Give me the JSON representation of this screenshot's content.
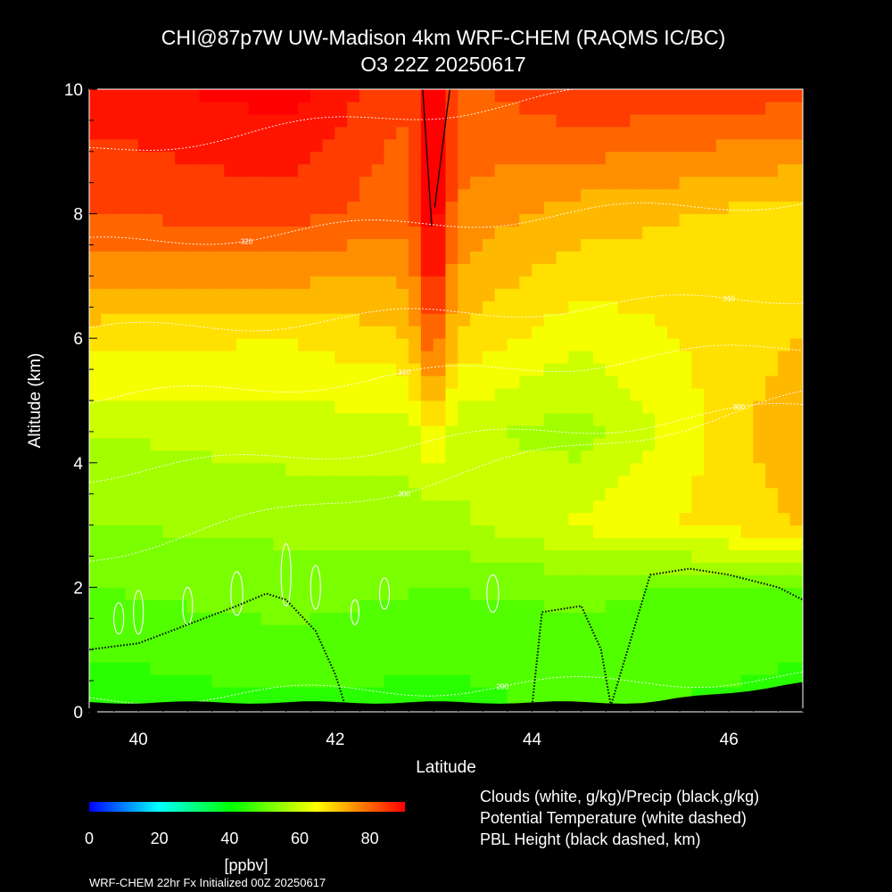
{
  "chart_data": {
    "type": "heatmap",
    "title": "CHI@87p7W UW-Madison 4km WRF-CHEM (RAQMS IC/BC)",
    "subtitle": "O3 22Z 20250617",
    "xlabel": "Latitude",
    "ylabel": "Altitude (km)",
    "xlim": [
      39.5,
      46.75
    ],
    "ylim": [
      0,
      10
    ],
    "x_ticks": [
      40,
      42,
      44,
      46
    ],
    "y_ticks": [
      0,
      2,
      4,
      6,
      8,
      10
    ],
    "x_tick_labels": [
      "40",
      "42",
      "44",
      "46"
    ],
    "y_tick_labels": [
      "0",
      "2",
      "4",
      "6",
      "8",
      "10"
    ],
    "colorbar": {
      "label": "[ppbv]",
      "range": [
        0,
        90
      ],
      "tick_values": [
        0,
        20,
        40,
        60,
        80
      ],
      "tick_labels": [
        "0",
        "20",
        "40",
        "60",
        "80"
      ],
      "colors": [
        "#0000ff",
        "#00ffff",
        "#00ff00",
        "#ffff00",
        "#ff0000"
      ]
    },
    "legend": [
      "Clouds (white, g/kg)/Precip (black,g/kg)",
      "Potential Temperature (white dashed)",
      "PBL Height (black dashed, km)"
    ],
    "theta_labels": [
      "290",
      "300",
      "300",
      "310",
      "310",
      "320",
      "320"
    ],
    "ozone_levels_ppbv": [
      {
        "alt_km": 0.3,
        "lat": [
          39.5,
          41.5,
          43.0,
          44.5,
          46.75
        ],
        "o3": [
          44,
          46,
          45,
          47,
          45
        ]
      },
      {
        "alt_km": 2.0,
        "lat": [
          39.5,
          41.5,
          43.0,
          44.5,
          46.75
        ],
        "o3": [
          50,
          52,
          50,
          51,
          48
        ]
      },
      {
        "alt_km": 3.0,
        "lat": [
          39.5,
          41.5,
          43.0,
          44.5,
          46.75
        ],
        "o3": [
          54,
          55,
          56,
          63,
          70
        ]
      },
      {
        "alt_km": 4.5,
        "lat": [
          39.5,
          41.5,
          43.0,
          44.5,
          46.75
        ],
        "o3": [
          58,
          60,
          60,
          56,
          74
        ]
      },
      {
        "alt_km": 6.0,
        "lat": [
          39.5,
          41.5,
          43.0,
          44.5,
          46.75
        ],
        "o3": [
          68,
          66,
          70,
          63,
          70
        ]
      },
      {
        "alt_km": 8.0,
        "lat": [
          39.5,
          41.5,
          43.0,
          44.5,
          46.75
        ],
        "o3": [
          82,
          84,
          78,
          72,
          68
        ]
      },
      {
        "alt_km": 10.0,
        "lat": [
          39.5,
          41.5,
          43.0,
          44.5,
          46.75
        ],
        "o3": [
          88,
          92,
          80,
          86,
          84
        ]
      }
    ],
    "pbl_height_km": {
      "lat": [
        39.5,
        40.0,
        40.5,
        41.0,
        41.3,
        41.5,
        41.8,
        42.0,
        42.1,
        44.0,
        44.1,
        44.5,
        44.7,
        44.8,
        45.2,
        45.6,
        46.0,
        46.5,
        46.75
      ],
      "height": [
        1.0,
        1.1,
        1.4,
        1.7,
        1.9,
        1.8,
        1.3,
        0.6,
        0.1,
        0.1,
        1.6,
        1.7,
        1.0,
        0.1,
        2.2,
        2.3,
        2.2,
        2.0,
        1.8
      ]
    },
    "cloud_ice_outlines_lat": [
      39.8,
      40.0,
      40.5,
      41.0,
      41.5,
      41.8,
      42.2,
      42.5,
      43.6
    ],
    "tropopause_fold_lat": 43.0,
    "grid": false
  },
  "footer": {
    "run_info": "WRF-CHEM 22hr  Fx Initialized 00Z 20250617"
  }
}
